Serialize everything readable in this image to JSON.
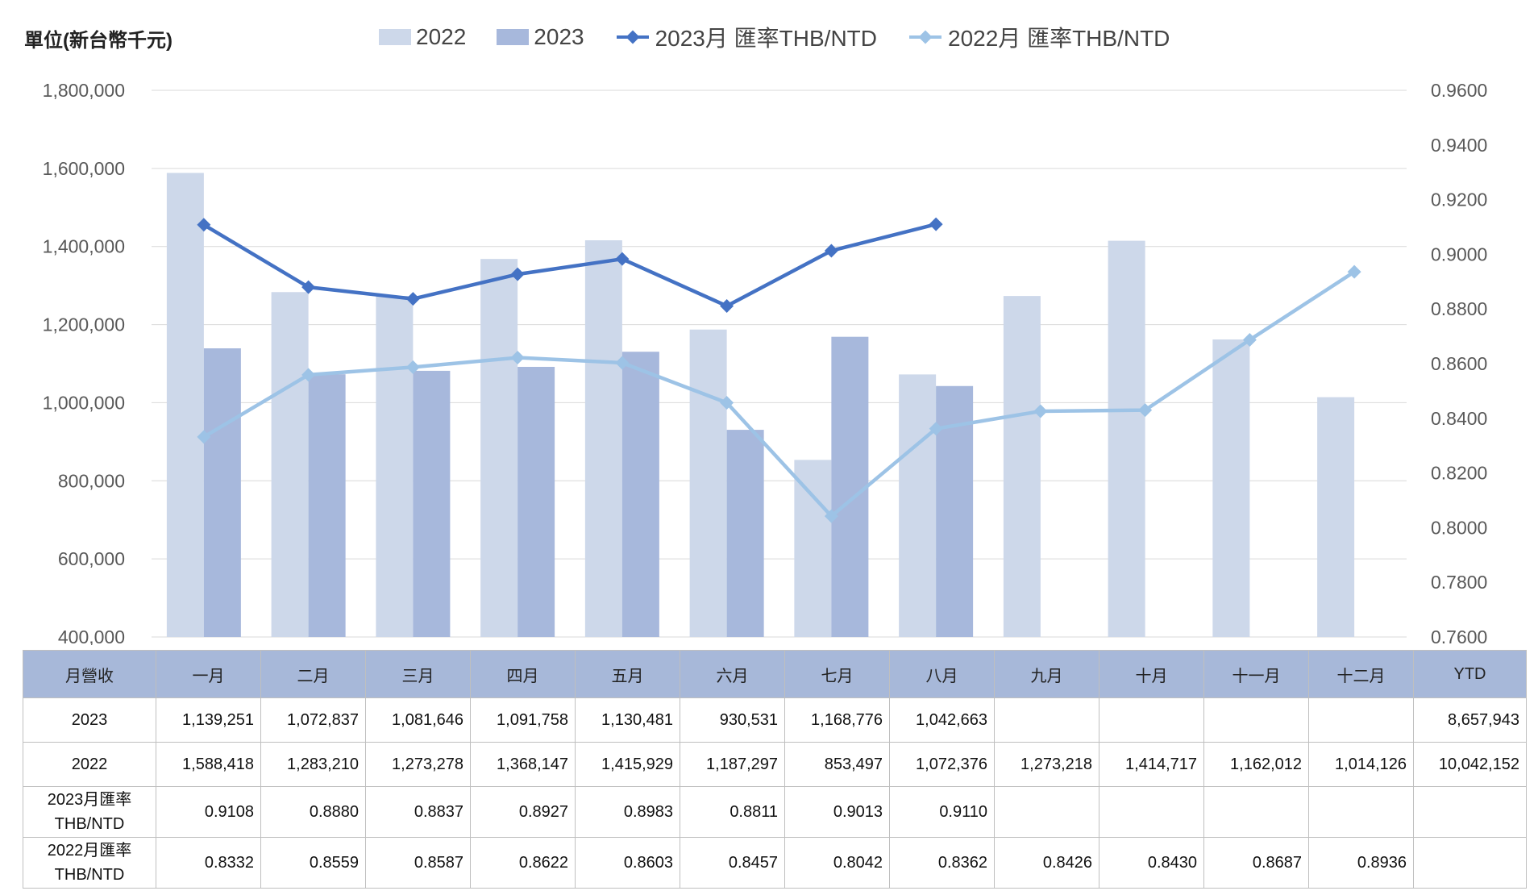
{
  "unit_label": "單位(新台幣千元)",
  "legend": [
    {
      "label": "2022",
      "type": "bar",
      "color": "#cdd8ea"
    },
    {
      "label": "2023",
      "type": "bar",
      "color": "#a7b8dc"
    },
    {
      "label": "2023月 匯率THB/NTD",
      "type": "line",
      "color": "#4472c4"
    },
    {
      "label": "2022月 匯率THB/NTD",
      "type": "line",
      "color": "#9dc3e6"
    }
  ],
  "chart_data": {
    "type": "bar",
    "categories": [
      "一月",
      "二月",
      "三月",
      "四月",
      "五月",
      "六月",
      "七月",
      "八月",
      "九月",
      "十月",
      "十一月",
      "十二月"
    ],
    "series": [
      {
        "name": "2022",
        "type": "bar",
        "axis": "left",
        "color": "#cdd8ea",
        "values": [
          1588418,
          1283210,
          1273278,
          1368147,
          1415929,
          1187297,
          853497,
          1072376,
          1273218,
          1414717,
          1162012,
          1014126
        ]
      },
      {
        "name": "2023",
        "type": "bar",
        "axis": "left",
        "color": "#a7b8dc",
        "values": [
          1139251,
          1072837,
          1081646,
          1091758,
          1130481,
          930531,
          1168776,
          1042663,
          null,
          null,
          null,
          null
        ]
      },
      {
        "name": "2023月 匯率THB/NTD",
        "type": "line",
        "axis": "right",
        "color": "#4472c4",
        "values": [
          0.9108,
          0.888,
          0.8837,
          0.8927,
          0.8983,
          0.8811,
          0.9013,
          0.911,
          null,
          null,
          null,
          null
        ]
      },
      {
        "name": "2022月 匯率THB/NTD",
        "type": "line",
        "axis": "right",
        "color": "#9dc3e6",
        "values": [
          0.8332,
          0.8559,
          0.8587,
          0.8622,
          0.8603,
          0.8457,
          0.8042,
          0.8362,
          0.8426,
          0.843,
          0.8687,
          0.8936
        ]
      }
    ],
    "ylim": [
      400000,
      1800000
    ],
    "yticks": [
      "400,000",
      "600,000",
      "800,000",
      "1,000,000",
      "1,200,000",
      "1,400,000",
      "1,600,000",
      "1,800,000"
    ],
    "y2lim": [
      0.76,
      0.96
    ],
    "y2ticks": [
      "0.7600",
      "0.7800",
      "0.8000",
      "0.8200",
      "0.8400",
      "0.8600",
      "0.8800",
      "0.9000",
      "0.9200",
      "0.9400",
      "0.9600"
    ],
    "grid": true,
    "legend_position": "top"
  },
  "table": {
    "headers": [
      "月營收",
      "一月",
      "二月",
      "三月",
      "四月",
      "五月",
      "六月",
      "七月",
      "八月",
      "九月",
      "十月",
      "十一月",
      "十二月",
      "YTD"
    ],
    "rows": [
      {
        "label": [
          "2023"
        ],
        "cells": [
          "1,139,251",
          "1,072,837",
          "1,081,646",
          "1,091,758",
          "1,130,481",
          "930,531",
          "1,168,776",
          "1,042,663",
          "",
          "",
          "",
          "",
          "8,657,943"
        ]
      },
      {
        "label": [
          "2022"
        ],
        "cells": [
          "1,588,418",
          "1,283,210",
          "1,273,278",
          "1,368,147",
          "1,415,929",
          "1,187,297",
          "853,497",
          "1,072,376",
          "1,273,218",
          "1,414,717",
          "1,162,012",
          "1,014,126",
          "10,042,152"
        ]
      },
      {
        "label": [
          "2023月匯率",
          "THB/NTD"
        ],
        "cells": [
          "0.9108",
          "0.8880",
          "0.8837",
          "0.8927",
          "0.8983",
          "0.8811",
          "0.9013",
          "0.9110",
          "",
          "",
          "",
          "",
          ""
        ]
      },
      {
        "label": [
          "2022月匯率",
          "THB/NTD"
        ],
        "cells": [
          "0.8332",
          "0.8559",
          "0.8587",
          "0.8622",
          "0.8603",
          "0.8457",
          "0.8042",
          "0.8362",
          "0.8426",
          "0.8430",
          "0.8687",
          "0.8936",
          ""
        ]
      }
    ]
  }
}
